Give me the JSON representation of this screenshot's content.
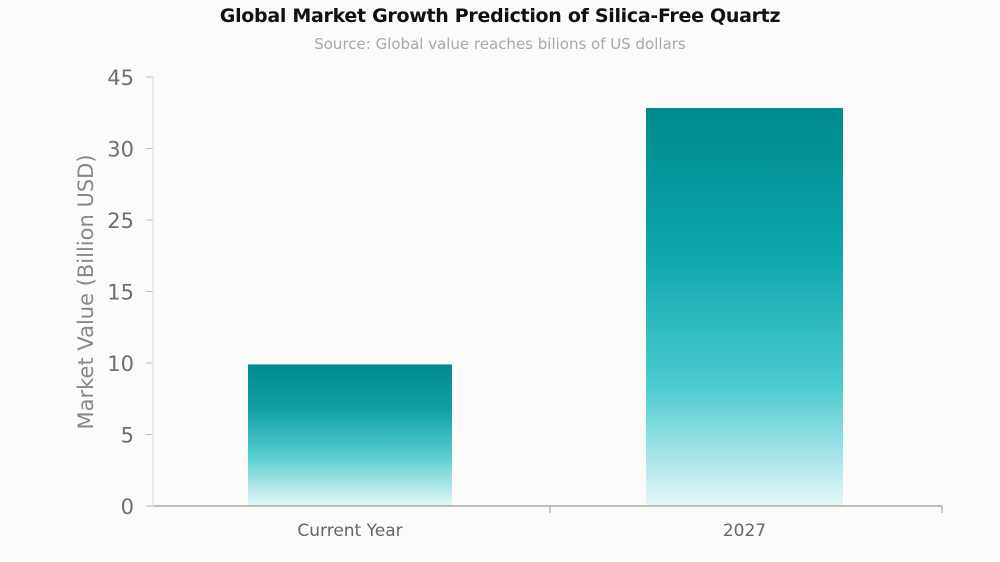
{
  "chart_data": {
    "type": "bar",
    "title": "Global Market Growth Prediction of Silica-Free Quartz",
    "subtitle": "Source: Global value reaches bilions of US dollars",
    "xlabel": "",
    "ylabel": "Market Value (Billion USD)",
    "categories": [
      "Current Year",
      "2027"
    ],
    "values": [
      9.9,
      38.5
    ],
    "y_tick_labels": [
      "0",
      "5",
      "10",
      "15",
      "25",
      "30",
      "45"
    ],
    "ylim": [
      0,
      45
    ],
    "grid": false,
    "legend": "none",
    "colors": {
      "bar_top": "#008b8d",
      "bar_mid": "#1fb3b8",
      "bar_bottom": "#e6f7f7",
      "axis": "#9a9a9a"
    }
  }
}
